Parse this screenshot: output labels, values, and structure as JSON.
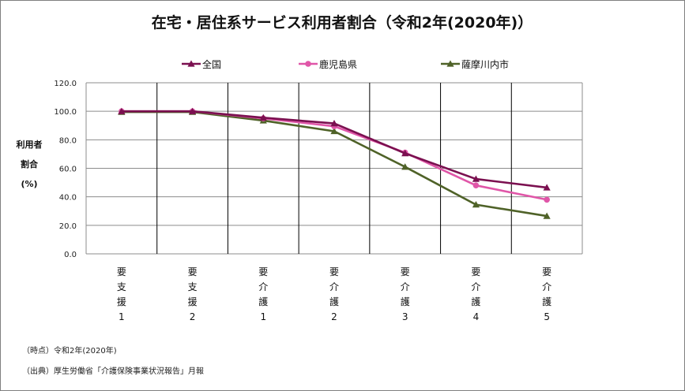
{
  "chart_data": {
    "type": "line",
    "title": "在宅・居住系サービス利用者割合（令和2年(2020年)）",
    "ylabel_lines": [
      "利用者",
      "割合",
      "(%)"
    ],
    "categories": [
      [
        "要",
        "支",
        "援",
        "1"
      ],
      [
        "要",
        "支",
        "援",
        "2"
      ],
      [
        "要",
        "介",
        "護",
        "1"
      ],
      [
        "要",
        "介",
        "護",
        "2"
      ],
      [
        "要",
        "介",
        "護",
        "3"
      ],
      [
        "要",
        "介",
        "護",
        "4"
      ],
      [
        "要",
        "介",
        "護",
        "5"
      ]
    ],
    "ylim": [
      0,
      120
    ],
    "ytick_values": [
      0,
      20,
      40,
      60,
      80,
      100,
      120
    ],
    "ytick_labels": [
      "0.0",
      "20.0",
      "40.0",
      "60.0",
      "80.0",
      "100.0",
      "120.0"
    ],
    "grid": true,
    "legend_position": "top",
    "series": [
      {
        "name": "全国",
        "marker": "triangle",
        "color": "#7b1050",
        "values": [
          100.0,
          100.0,
          95.5,
          91.5,
          70.5,
          52.5,
          46.5
        ]
      },
      {
        "name": "鹿児島県",
        "marker": "circle",
        "color": "#e056a8",
        "values": [
          100.0,
          100.0,
          95.0,
          89.5,
          71.0,
          48.0,
          38.0
        ]
      },
      {
        "name": "薩摩川内市",
        "marker": "triangle",
        "color": "#4f6228",
        "values": [
          99.5,
          99.5,
          93.5,
          86.0,
          61.0,
          34.5,
          26.5
        ]
      }
    ]
  },
  "notes": {
    "period": "（時点）令和2年(2020年)",
    "source": "（出典）厚生労働省「介護保険事業状況報告」月報"
  }
}
